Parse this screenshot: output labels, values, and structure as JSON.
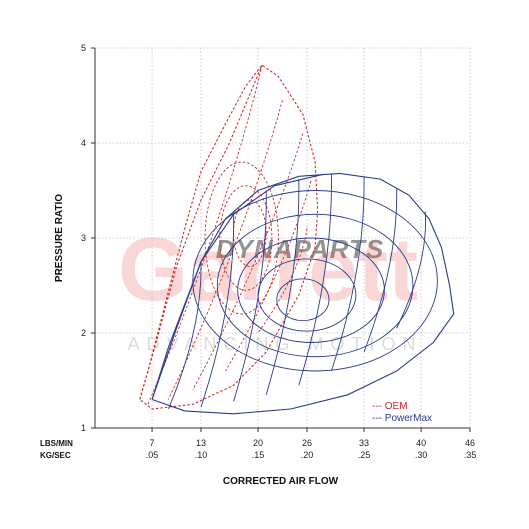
{
  "chart_data": {
    "type": "line",
    "title": "",
    "ylabel": "PRESSURE RATIO",
    "xlabel": "CORRECTED AIR FLOW",
    "ylim": [
      1,
      5
    ],
    "yticks": [
      "1",
      "2",
      "3",
      "4",
      "5"
    ],
    "xlim": [
      0,
      46
    ],
    "x_unit_labels": [
      "LBS/MIN",
      "KG/SEC"
    ],
    "xticks_lbs": [
      "7",
      "13",
      "20",
      "26",
      "33",
      "40",
      "46"
    ],
    "xticks_kg": [
      ".05",
      ".10",
      ".15",
      ".20",
      ".25",
      ".30",
      ".35"
    ],
    "grid": "dotted",
    "legend_position": "bottom-right",
    "watermark": [
      "DYNAPARTS",
      "Garrett",
      "ADVANCING MOTION"
    ],
    "series": [
      {
        "name": "OEM",
        "color": "#cc2b2b",
        "style": "dashed",
        "outline": [
          [
            5.5,
            1.3
          ],
          [
            6.5,
            1.6
          ],
          [
            8,
            2.1
          ],
          [
            9.5,
            2.6
          ],
          [
            11,
            3.1
          ],
          [
            13,
            3.7
          ],
          [
            16,
            4.2
          ],
          [
            18.5,
            4.6
          ],
          [
            20.5,
            4.82
          ],
          [
            22.5,
            4.7
          ],
          [
            24,
            4.5
          ],
          [
            25.5,
            4.3
          ],
          [
            27,
            3.8
          ],
          [
            27.3,
            3.3
          ],
          [
            27,
            2.9
          ],
          [
            25,
            2.4
          ],
          [
            21,
            1.8
          ],
          [
            17,
            1.45
          ],
          [
            12,
            1.25
          ],
          [
            7,
            1.2
          ],
          [
            5.5,
            1.3
          ]
        ],
        "surge_points": [
          [
            5.5,
            1.3
          ],
          [
            7.5,
            1.9
          ],
          [
            10,
            2.7
          ],
          [
            13,
            3.4
          ],
          [
            16.5,
            4.0
          ],
          [
            20.5,
            4.82
          ]
        ],
        "speed_lines": [
          {
            "top": [
              20.5,
              4.82
            ],
            "bottom": [
              6.5,
              1.25
            ]
          },
          {
            "top": [
              23,
              4.45
            ],
            "bottom": [
              9,
              1.3
            ]
          },
          {
            "top": [
              25.5,
              4.1
            ],
            "bottom": [
              12,
              1.4
            ]
          },
          {
            "top": [
              26.5,
              3.6
            ],
            "bottom": [
              16,
              1.6
            ]
          },
          {
            "top": [
              26,
              3.1
            ],
            "bottom": [
              20,
              2.0
            ]
          }
        ],
        "efficiency_islands": [
          {
            "center": [
              18,
              3.0
            ],
            "rx": 4.5,
            "ry": 0.8
          },
          {
            "center": [
              18.5,
              3.0
            ],
            "rx": 3.2,
            "ry": 0.55
          },
          {
            "center": [
              19,
              3.05
            ],
            "rx": 2.0,
            "ry": 0.35
          }
        ]
      },
      {
        "name": "PowerMax",
        "color": "#2a3c8c",
        "style": "solid",
        "outline": [
          [
            7,
            1.3
          ],
          [
            9,
            1.85
          ],
          [
            11,
            2.3
          ],
          [
            13,
            2.75
          ],
          [
            16,
            3.2
          ],
          [
            20,
            3.5
          ],
          [
            25,
            3.65
          ],
          [
            30,
            3.68
          ],
          [
            35,
            3.62
          ],
          [
            38.5,
            3.45
          ],
          [
            41,
            3.2
          ],
          [
            42.5,
            2.9
          ],
          [
            43.5,
            2.5
          ],
          [
            44,
            2.2
          ],
          [
            41.5,
            1.9
          ],
          [
            37,
            1.6
          ],
          [
            31,
            1.35
          ],
          [
            24,
            1.2
          ],
          [
            17,
            1.15
          ],
          [
            11,
            1.18
          ],
          [
            7,
            1.3
          ]
        ],
        "surge_points": [
          [
            7,
            1.3
          ],
          [
            10,
            2.05
          ],
          [
            13,
            2.75
          ],
          [
            17,
            3.25
          ],
          [
            22,
            3.55
          ],
          [
            28,
            3.67
          ]
        ],
        "speed_lines": [
          {
            "top": [
              13,
              2.75
            ],
            "bottom": [
              9,
              1.2
            ]
          },
          {
            "top": [
              17,
              3.25
            ],
            "bottom": [
              13,
              1.22
            ]
          },
          {
            "top": [
              21,
              3.5
            ],
            "bottom": [
              17,
              1.28
            ]
          },
          {
            "top": [
              25,
              3.62
            ],
            "bottom": [
              21,
              1.35
            ]
          },
          {
            "top": [
              29,
              3.67
            ],
            "bottom": [
              25,
              1.45
            ]
          },
          {
            "top": [
              33,
              3.65
            ],
            "bottom": [
              29,
              1.6
            ]
          },
          {
            "top": [
              37,
              3.52
            ],
            "bottom": [
              33,
              1.8
            ]
          },
          {
            "top": [
              40.5,
              3.28
            ],
            "bottom": [
              37,
              2.05
            ]
          }
        ],
        "efficiency_islands": [
          {
            "center": [
              27,
              2.55
            ],
            "rx": 15,
            "ry": 0.95
          },
          {
            "center": [
              27,
              2.5
            ],
            "rx": 12,
            "ry": 0.75
          },
          {
            "center": [
              26.5,
              2.45
            ],
            "rx": 9,
            "ry": 0.55
          },
          {
            "center": [
              26,
              2.4
            ],
            "rx": 6,
            "ry": 0.38
          },
          {
            "center": [
              25.5,
              2.35
            ],
            "rx": 3.2,
            "ry": 0.22
          }
        ]
      }
    ]
  }
}
